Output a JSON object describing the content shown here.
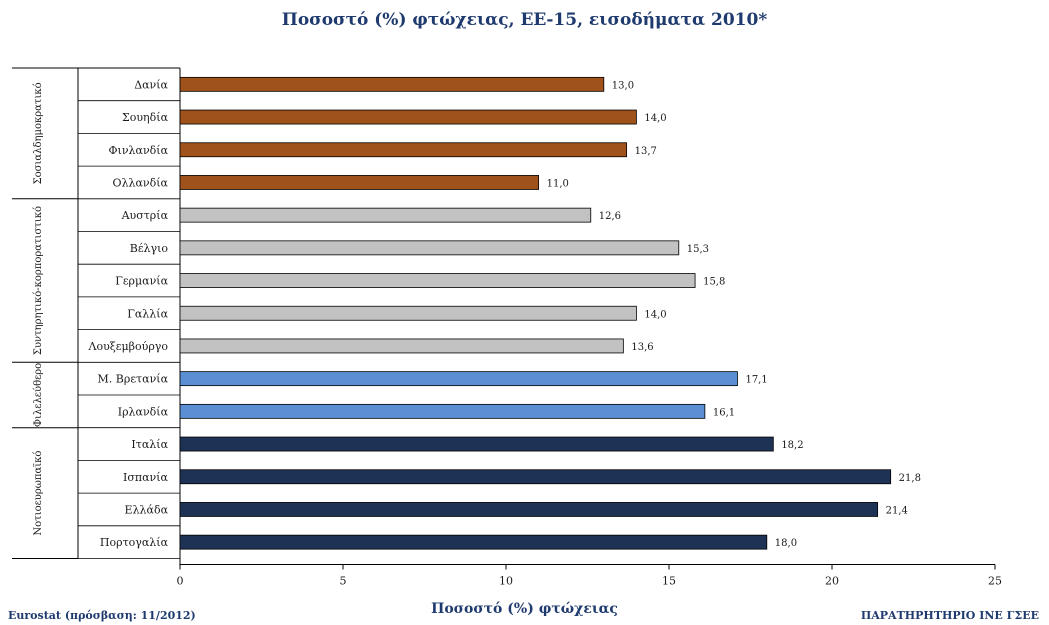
{
  "chart_data": {
    "type": "bar",
    "orientation": "horizontal",
    "title": "Ποσοστό (%) φτώχειας, ΕΕ-15,  εισοδήματα 2010*",
    "xlabel": "Ποσοστό (%) φτώχειας",
    "ylabel": "",
    "xlim": [
      0,
      25
    ],
    "xticks": [
      "0",
      "5",
      "10",
      "15",
      "20",
      "25"
    ],
    "grid": false,
    "categories": [
      "Δανία",
      "Σουηδία",
      "Φινλανδία",
      "Ολλανδία",
      "Αυστρία",
      "Βέλγιο",
      "Γερμανία",
      "Γαλλία",
      "Λουξεμβούργο",
      "Μ. Βρετανία",
      "Ιρλανδία",
      "Ιταλία",
      "Ισπανία",
      "Ελλάδα",
      "Πορτογαλία"
    ],
    "values": [
      13.0,
      14.0,
      13.7,
      11.0,
      12.6,
      15.3,
      15.8,
      14.0,
      13.6,
      17.1,
      16.1,
      18.2,
      21.8,
      21.4,
      18.0
    ],
    "value_labels": [
      "13,0",
      "14,0",
      "13,7",
      "11,0",
      "12,6",
      "15,3",
      "15,8",
      "14,0",
      "13,6",
      "17,1",
      "16,1",
      "18,2",
      "21,8",
      "21,4",
      "18,0"
    ],
    "groups": [
      {
        "name": "Σοσιαλδημοκρατικό",
        "count": 4,
        "color": "#a0521b"
      },
      {
        "name": "Συντηρητικό-κορπορατιστικό",
        "count": 5,
        "color": "#c2c2c2"
      },
      {
        "name": "Φιλελεύθερο",
        "count": 2,
        "color": "#5b8fd4"
      },
      {
        "name": "Νοτιοευρωπαϊκό",
        "count": 4,
        "color": "#1e3255"
      }
    ]
  },
  "footer": {
    "source": "Eurostat (πρόσβαση: 11/2012)",
    "publisher": "ΠΑΡΑΤΗΡΗΤΗΡΙΟ ΙΝΕ ΓΣΕΕ"
  }
}
